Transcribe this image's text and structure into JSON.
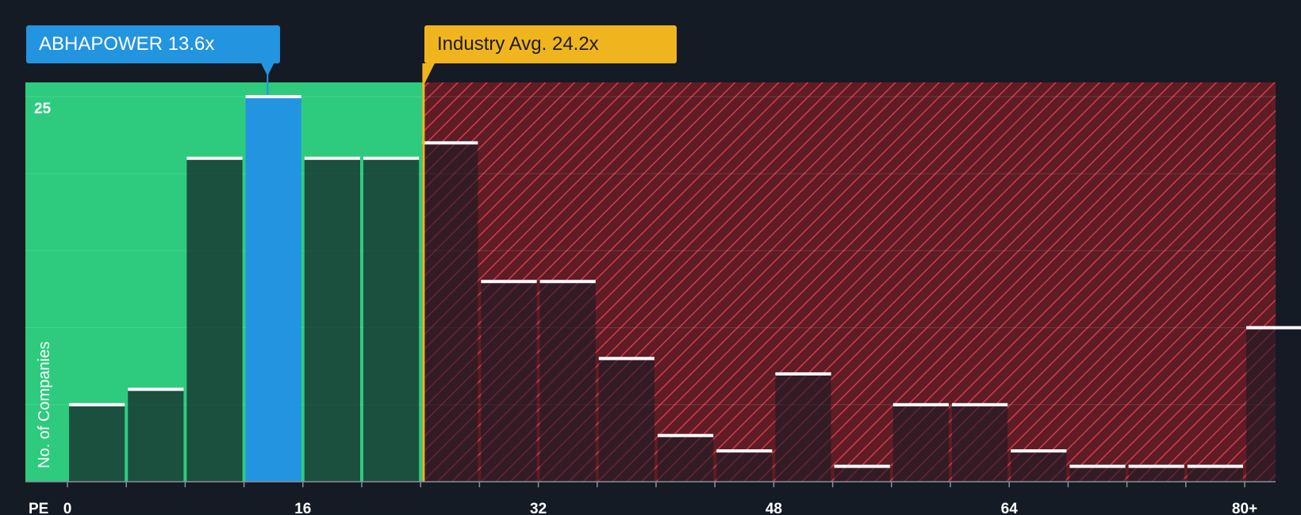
{
  "company_label": "ABHAPOWER 13.6x",
  "industry_label": "Industry Avg. 24.2x",
  "colors": {
    "background": "#151b24",
    "fair_zone": "#2ecb7e",
    "overvalued_zone": "#7a1f28",
    "hatch": "#e0394a",
    "company_bar": "#2394e0",
    "industry_line": "#f0b51e"
  },
  "chart_data": {
    "type": "bar",
    "title": "",
    "xlabel": "PE",
    "ylabel": "No. of Companies",
    "x_ticks": [
      "0",
      "16",
      "32",
      "48",
      "64",
      "80+"
    ],
    "y_tick_labels": [
      "25"
    ],
    "ylim": [
      0,
      26
    ],
    "bin_width": 4,
    "bins_start": [
      0,
      4,
      8,
      12,
      16,
      20,
      24,
      28,
      32,
      36,
      40,
      44,
      48,
      52,
      56,
      60,
      64,
      68,
      72,
      76,
      80
    ],
    "values": [
      5,
      6,
      21,
      25,
      21,
      21,
      22,
      13,
      13,
      8,
      3,
      2,
      7,
      1,
      5,
      5,
      2,
      1,
      1,
      1,
      10
    ],
    "highlight_value": 13.6,
    "industry_avg": 24.2,
    "grid": true
  }
}
